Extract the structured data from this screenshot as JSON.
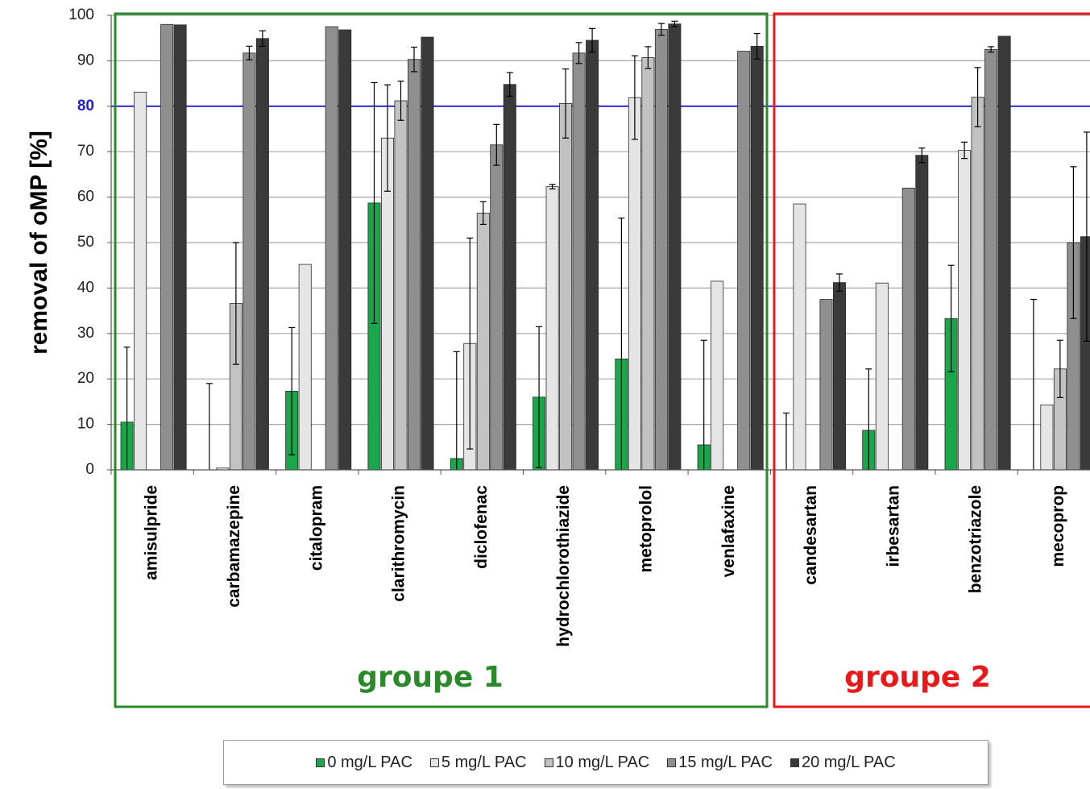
{
  "chart_data": {
    "type": "bar",
    "ylabel": "removal of oMP [%]",
    "ylim": [
      0,
      100
    ],
    "yticks": [
      0,
      10,
      20,
      30,
      40,
      50,
      60,
      70,
      80,
      90,
      100
    ],
    "highlight_tick": 80,
    "reference_line": 80,
    "grid": true,
    "legend_position": "bottom",
    "categories": [
      "amisulpride",
      "carbamazepine",
      "citalopram",
      "clarithromycin",
      "diclofenac",
      "hydrochlorothiazide",
      "metoprolol",
      "venlafaxine",
      "candesartan",
      "irbesartan",
      "benzotriazole",
      "mecoprop"
    ],
    "series": [
      {
        "name": "0 mg/L PAC",
        "color": "#1aa64b",
        "values": [
          10.5,
          0,
          17.3,
          58.7,
          2.5,
          16,
          24.4,
          5.5,
          0,
          8.7,
          33.3,
          0
        ],
        "errors": [
          16.5,
          19,
          14,
          26.5,
          23.5,
          15.5,
          31,
          23,
          12.5,
          13.5,
          11.7,
          37.5
        ]
      },
      {
        "name": "5 mg/L PAC",
        "color": "#e5e5e5",
        "values": [
          83.1,
          0.4,
          45.2,
          73,
          27.8,
          62.3,
          81.9,
          41.5,
          58.5,
          41.1,
          70.3,
          14.3
        ],
        "errors": [
          0,
          0,
          0,
          11.7,
          23.2,
          0.5,
          9.2,
          0,
          0,
          0,
          1.8,
          0
        ]
      },
      {
        "name": "10 mg/L PAC",
        "color": "#c2c2c2",
        "values": [
          0,
          36.6,
          0,
          81.2,
          56.5,
          80.6,
          90.7,
          0,
          0,
          0,
          82,
          22.2
        ],
        "errors": [
          0,
          13.4,
          0,
          4.3,
          2.5,
          7.6,
          2.4,
          0,
          0,
          0,
          6.5,
          6.3
        ]
      },
      {
        "name": "15 mg/L PAC",
        "color": "#8f8f8f",
        "values": [
          98,
          91.7,
          97.5,
          90.3,
          71.5,
          91.7,
          96.9,
          92.1,
          37.5,
          62,
          92.5,
          50
        ],
        "errors": [
          0,
          1.5,
          0,
          2.7,
          4.5,
          2.3,
          1.3,
          0,
          0,
          0,
          0.6,
          16.7
        ]
      },
      {
        "name": "20 mg/L PAC",
        "color": "#3a3a3a",
        "values": [
          97.9,
          94.9,
          96.8,
          95.2,
          84.8,
          94.5,
          98.1,
          93.2,
          41.2,
          69.2,
          95.4,
          51.3
        ],
        "errors": [
          0,
          1.7,
          0,
          0,
          2.6,
          2.6,
          0.6,
          2.8,
          1.9,
          1.6,
          0,
          23
        ]
      }
    ],
    "groups": [
      {
        "label": "groupe 1",
        "color": "#2a8a2a"
      },
      {
        "label": "groupe 2",
        "color": "#e8191b"
      }
    ]
  }
}
